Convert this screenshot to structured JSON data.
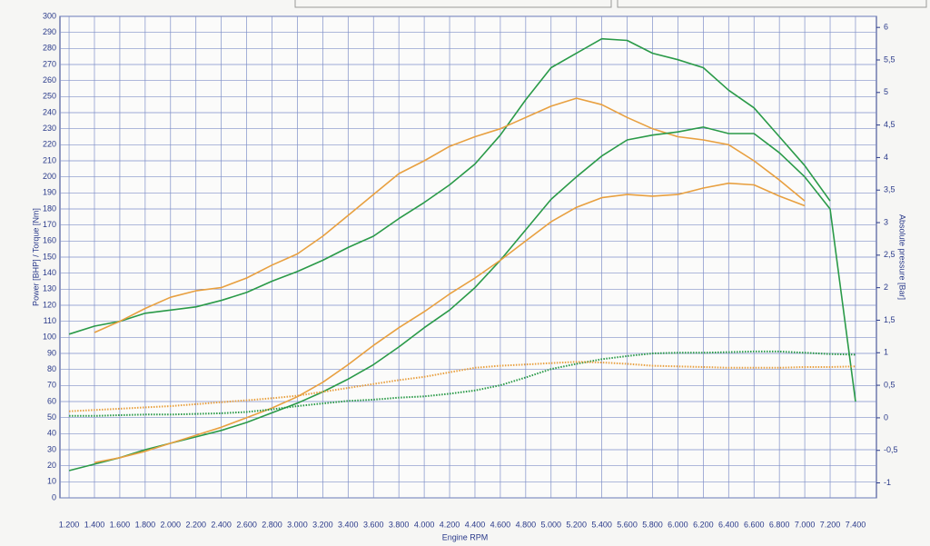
{
  "chart_data": {
    "type": "line",
    "x_label": "Engine RPM",
    "y_label": "Power [BHP] / Torque [Nm]",
    "y2_label": "Absolute pressure [Bar]",
    "grid": true,
    "x": [
      1200,
      1400,
      1600,
      1800,
      2000,
      2200,
      2400,
      2600,
      2800,
      3000,
      3200,
      3400,
      3600,
      3800,
      4000,
      4200,
      4400,
      4600,
      4800,
      5000,
      5200,
      5400,
      5600,
      5800,
      6000,
      6200,
      6400,
      6600,
      6800,
      7000,
      7200,
      7400
    ],
    "xlim": [
      1128,
      7565
    ],
    "xticks": [
      {
        "value": 1200,
        "label": "1.200"
      },
      {
        "value": 1400,
        "label": "1.400"
      },
      {
        "value": 1600,
        "label": "1.600"
      },
      {
        "value": 1800,
        "label": "1.800"
      },
      {
        "value": 2000,
        "label": "2.000"
      },
      {
        "value": 2200,
        "label": "2.200"
      },
      {
        "value": 2400,
        "label": "2.400"
      },
      {
        "value": 2600,
        "label": "2.600"
      },
      {
        "value": 2800,
        "label": "2.800"
      },
      {
        "value": 3000,
        "label": "3.000"
      },
      {
        "value": 3200,
        "label": "3.200"
      },
      {
        "value": 3400,
        "label": "3.400"
      },
      {
        "value": 3600,
        "label": "3.600"
      },
      {
        "value": 3800,
        "label": "3.800"
      },
      {
        "value": 4000,
        "label": "4.000"
      },
      {
        "value": 4200,
        "label": "4.200"
      },
      {
        "value": 4400,
        "label": "4.400"
      },
      {
        "value": 4600,
        "label": "4.600"
      },
      {
        "value": 4800,
        "label": "4.800"
      },
      {
        "value": 5000,
        "label": "5.000"
      },
      {
        "value": 5200,
        "label": "5.200"
      },
      {
        "value": 5400,
        "label": "5.400"
      },
      {
        "value": 5600,
        "label": "5.600"
      },
      {
        "value": 5800,
        "label": "5.800"
      },
      {
        "value": 6000,
        "label": "6.000"
      },
      {
        "value": 6200,
        "label": "6.200"
      },
      {
        "value": 6400,
        "label": "6.400"
      },
      {
        "value": 6600,
        "label": "6.600"
      },
      {
        "value": 6800,
        "label": "6.800"
      },
      {
        "value": 7000,
        "label": "7.000"
      },
      {
        "value": 7200,
        "label": "7.200"
      },
      {
        "value": 7400,
        "label": "7.400"
      }
    ],
    "ylim": [
      0,
      300
    ],
    "yticks": [
      0,
      10,
      20,
      30,
      40,
      50,
      60,
      70,
      80,
      90,
      100,
      110,
      120,
      130,
      140,
      150,
      160,
      170,
      180,
      190,
      200,
      210,
      220,
      230,
      240,
      250,
      260,
      270,
      280,
      290,
      300
    ],
    "y2lim": [
      -1.23,
      6.17
    ],
    "y2ticks": [
      -1,
      {
        "value": -0.5,
        "label": "-0,5"
      },
      0,
      {
        "value": 0.5,
        "label": "0,5"
      },
      1,
      {
        "value": 1.5,
        "label": "1,5"
      },
      2,
      {
        "value": 2.5,
        "label": "2,5"
      },
      3,
      {
        "value": 3.5,
        "label": "3,5"
      },
      4,
      {
        "value": 4.5,
        "label": "4,5"
      },
      5,
      {
        "value": 5.5,
        "label": "5,5"
      },
      6
    ],
    "series": [
      {
        "color": "#2a9a48",
        "values": [
          102,
          107,
          110,
          115,
          117,
          119,
          123,
          128,
          135,
          141,
          148,
          156,
          163,
          174,
          184,
          195,
          208,
          226,
          248,
          268,
          277,
          286,
          285,
          277,
          273,
          268,
          254,
          243,
          225,
          207,
          185,
          null
        ]
      },
      {
        "color": "#e8a040",
        "values": [
          null,
          103,
          110,
          118,
          125,
          129,
          131,
          137,
          145,
          152,
          163,
          176,
          189,
          202,
          210,
          219,
          225,
          230,
          237,
          244,
          249,
          245,
          237,
          230,
          225,
          223,
          220,
          210,
          198,
          185,
          null,
          null
        ]
      },
      {
        "color": "#2a9a48",
        "values": [
          17,
          21,
          25,
          30,
          34,
          38,
          42,
          47,
          53,
          59,
          66,
          74,
          83,
          94,
          106,
          117,
          131,
          148,
          167,
          186,
          200,
          213,
          223,
          226,
          228,
          231,
          227,
          227,
          215,
          200,
          180,
          60
        ]
      },
      {
        "color": "#e8a040",
        "values": [
          null,
          22,
          25,
          29,
          34,
          39,
          44,
          50,
          56,
          63,
          72,
          83,
          95,
          106,
          116,
          127,
          137,
          148,
          160,
          172,
          181,
          187,
          189,
          188,
          189,
          193,
          196,
          195,
          188,
          182,
          null,
          null
        ]
      },
      {
        "color": "#2a9a48",
        "axis": "y2",
        "dash": "dotted",
        "values": [
          0.03,
          0.03,
          0.04,
          0.05,
          0.05,
          0.06,
          0.07,
          0.09,
          0.13,
          0.18,
          0.22,
          0.26,
          0.28,
          0.31,
          0.33,
          0.37,
          0.42,
          0.5,
          0.62,
          0.75,
          0.83,
          0.9,
          0.95,
          0.99,
          1.0,
          1.0,
          1.01,
          1.02,
          1.02,
          1.0,
          0.98,
          0.97
        ]
      },
      {
        "color": "#e8a040",
        "axis": "y2",
        "dash": "dotted",
        "values": [
          0.1,
          0.12,
          0.14,
          0.16,
          0.18,
          0.21,
          0.24,
          0.27,
          0.3,
          0.34,
          0.4,
          0.46,
          0.52,
          0.58,
          0.63,
          0.7,
          0.77,
          0.8,
          0.82,
          0.84,
          0.86,
          0.85,
          0.83,
          0.8,
          0.79,
          0.78,
          0.77,
          0.77,
          0.77,
          0.78,
          0.78,
          0.79
        ]
      }
    ]
  }
}
